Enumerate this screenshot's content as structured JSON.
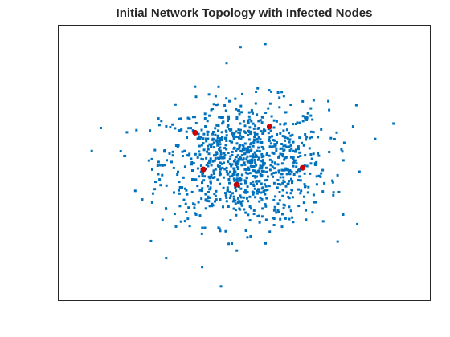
{
  "chart_data": {
    "type": "scatter",
    "title": "Initial Network Topology with Infected Nodes",
    "xlabel": "",
    "ylabel": "",
    "xlim": [
      -4.5,
      4.5
    ],
    "ylim": [
      -4.5,
      4.5
    ],
    "axes_visible": false,
    "grid": false,
    "legend": "none",
    "series": [
      {
        "color": "#0072BD",
        "marker": "square",
        "point_count": 1000,
        "distribution": "normal, mean 0, std 1 (synthetic)",
        "notable_points": [
          {
            "x": -0.1,
            "y": 3.8
          },
          {
            "x": 0.5,
            "y": 3.9
          },
          {
            "x": 3.6,
            "y": 1.3
          },
          {
            "x": -3.7,
            "y": 0.4
          },
          {
            "x": -1.9,
            "y": -3.1
          },
          {
            "x": 1.9,
            "y": -1.9
          },
          {
            "x": -1.2,
            "y": 2.5
          },
          {
            "x": 2.7,
            "y": 1.9
          }
        ]
      },
      {
        "color": "#D60000",
        "marker": "circle",
        "points": [
          {
            "x": -1.2,
            "y": 1.0
          },
          {
            "x": 0.6,
            "y": 1.2
          },
          {
            "x": -1.0,
            "y": -0.2
          },
          {
            "x": 1.4,
            "y": -0.15
          },
          {
            "x": -0.2,
            "y": -0.7
          }
        ]
      }
    ]
  }
}
